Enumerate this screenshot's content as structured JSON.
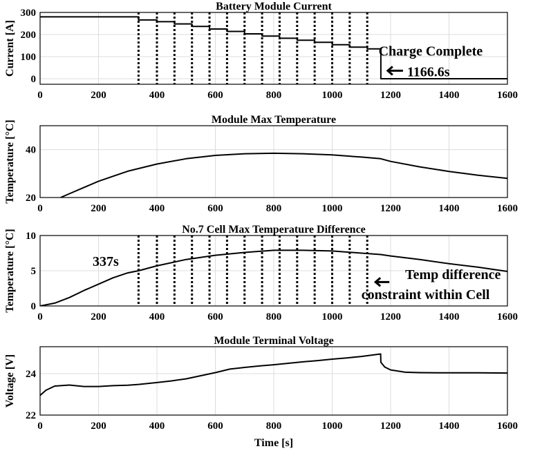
{
  "chart_data": [
    {
      "type": "line",
      "title": "Battery Module Current",
      "xlabel": "",
      "ylabel": "Current [A]",
      "xlim": [
        0,
        1600
      ],
      "ylim": [
        -25,
        300
      ],
      "xticks": [
        "0",
        "200",
        "400",
        "600",
        "800",
        "1000",
        "1200",
        "1400",
        "1600"
      ],
      "yticks": [
        "0",
        "100",
        "200",
        "300"
      ],
      "ytick_values": [
        0,
        100,
        200,
        300
      ],
      "series": [
        {
          "name": "current",
          "x": [
            0,
            337,
            337,
            400,
            400,
            460,
            460,
            520,
            520,
            580,
            580,
            640,
            640,
            700,
            700,
            760,
            760,
            820,
            820,
            880,
            880,
            940,
            940,
            1000,
            1000,
            1060,
            1060,
            1120,
            1120,
            1166.6,
            1166.6,
            1600
          ],
          "y": [
            280,
            280,
            266,
            266,
            258,
            258,
            248,
            248,
            237,
            237,
            225,
            225,
            214,
            214,
            203,
            203,
            193,
            193,
            183,
            183,
            174,
            174,
            165,
            165,
            154,
            154,
            143,
            143,
            135,
            135,
            0,
            0
          ]
        }
      ],
      "vlines": [
        337,
        400,
        460,
        520,
        580,
        640,
        700,
        760,
        820,
        880,
        940,
        1000,
        1060,
        1120
      ],
      "annotations": [
        {
          "text": "Charge Complete",
          "x": 1166.6,
          "y": 130
        },
        {
          "text": "1166.6s",
          "x": 1166.6,
          "y": 30
        }
      ]
    },
    {
      "type": "line",
      "title": "Module Max Temperature",
      "xlabel": "",
      "ylabel": "Temperature [°C]",
      "xlim": [
        0,
        1600
      ],
      "ylim": [
        20,
        50
      ],
      "xticks": [
        "0",
        "200",
        "400",
        "600",
        "800",
        "1000",
        "1200",
        "1400",
        "1600"
      ],
      "yticks": [
        "20",
        "40"
      ],
      "ytick_values": [
        20,
        40
      ],
      "series": [
        {
          "name": "max temperature",
          "x": [
            70,
            100,
            200,
            300,
            400,
            500,
            600,
            700,
            800,
            900,
            1000,
            1100,
            1166,
            1200,
            1300,
            1400,
            1500,
            1600
          ],
          "y": [
            20.0,
            21.6,
            26.8,
            31.0,
            34.0,
            36.2,
            37.6,
            38.3,
            38.5,
            38.3,
            37.8,
            36.9,
            36.2,
            35.1,
            32.8,
            30.9,
            29.3,
            28.0
          ]
        }
      ]
    },
    {
      "type": "line",
      "title": "No.7 Cell Max Temperature Difference",
      "xlabel": "",
      "ylabel": "Temperature [°C]",
      "xlim": [
        0,
        1600
      ],
      "ylim": [
        0,
        10
      ],
      "xticks": [
        "0",
        "200",
        "400",
        "600",
        "800",
        "1000",
        "1200",
        "1400",
        "1600"
      ],
      "yticks": [
        "0",
        "5",
        "10"
      ],
      "ytick_values": [
        0,
        5,
        10
      ],
      "series": [
        {
          "name": "temperature difference",
          "x": [
            0,
            50,
            100,
            150,
            200,
            250,
            300,
            337,
            400,
            500,
            600,
            700,
            800,
            900,
            1000,
            1100,
            1166,
            1200,
            1300,
            1400,
            1500,
            1600
          ],
          "y": [
            0,
            0.4,
            1.2,
            2.2,
            3.1,
            4.0,
            4.7,
            5.0,
            5.7,
            6.6,
            7.2,
            7.6,
            7.9,
            7.9,
            7.8,
            7.5,
            7.3,
            7.1,
            6.6,
            6.0,
            5.5,
            4.9
          ]
        }
      ],
      "vlines": [
        337,
        400,
        460,
        520,
        580,
        640,
        700,
        760,
        820,
        880,
        940,
        1000,
        1060,
        1120
      ],
      "annotations": [
        {
          "text": "337s",
          "x": 180,
          "y": 5.7
        },
        {
          "text": "Temp difference",
          "x": 1250,
          "y": 3.8
        },
        {
          "text": "constraint within Cell",
          "x": 1100,
          "y": 1.0
        }
      ]
    },
    {
      "type": "line",
      "title": "Module Terminal Voltage",
      "xlabel": "Time [s]",
      "ylabel": "Voltage [V]",
      "xlim": [
        0,
        1600
      ],
      "ylim": [
        22,
        25.3
      ],
      "xticks": [
        "0",
        "200",
        "400",
        "600",
        "800",
        "1000",
        "1200",
        "1400",
        "1600"
      ],
      "yticks": [
        "22",
        "24"
      ],
      "ytick_values": [
        22,
        24
      ],
      "series": [
        {
          "name": "voltage",
          "x": [
            0,
            20,
            50,
            100,
            150,
            200,
            250,
            300,
            337,
            400,
            450,
            500,
            550,
            600,
            650,
            700,
            750,
            800,
            850,
            900,
            950,
            1000,
            1050,
            1100,
            1166,
            1166.6,
            1180,
            1200,
            1250,
            1300,
            1400,
            1500,
            1600
          ],
          "y": [
            22.95,
            23.2,
            23.4,
            23.45,
            23.38,
            23.38,
            23.42,
            23.44,
            23.48,
            23.57,
            23.65,
            23.75,
            23.9,
            24.05,
            24.22,
            24.3,
            24.37,
            24.43,
            24.5,
            24.57,
            24.63,
            24.7,
            24.76,
            24.83,
            24.95,
            24.55,
            24.32,
            24.18,
            24.07,
            24.05,
            24.04,
            24.04,
            24.03
          ]
        }
      ]
    }
  ]
}
